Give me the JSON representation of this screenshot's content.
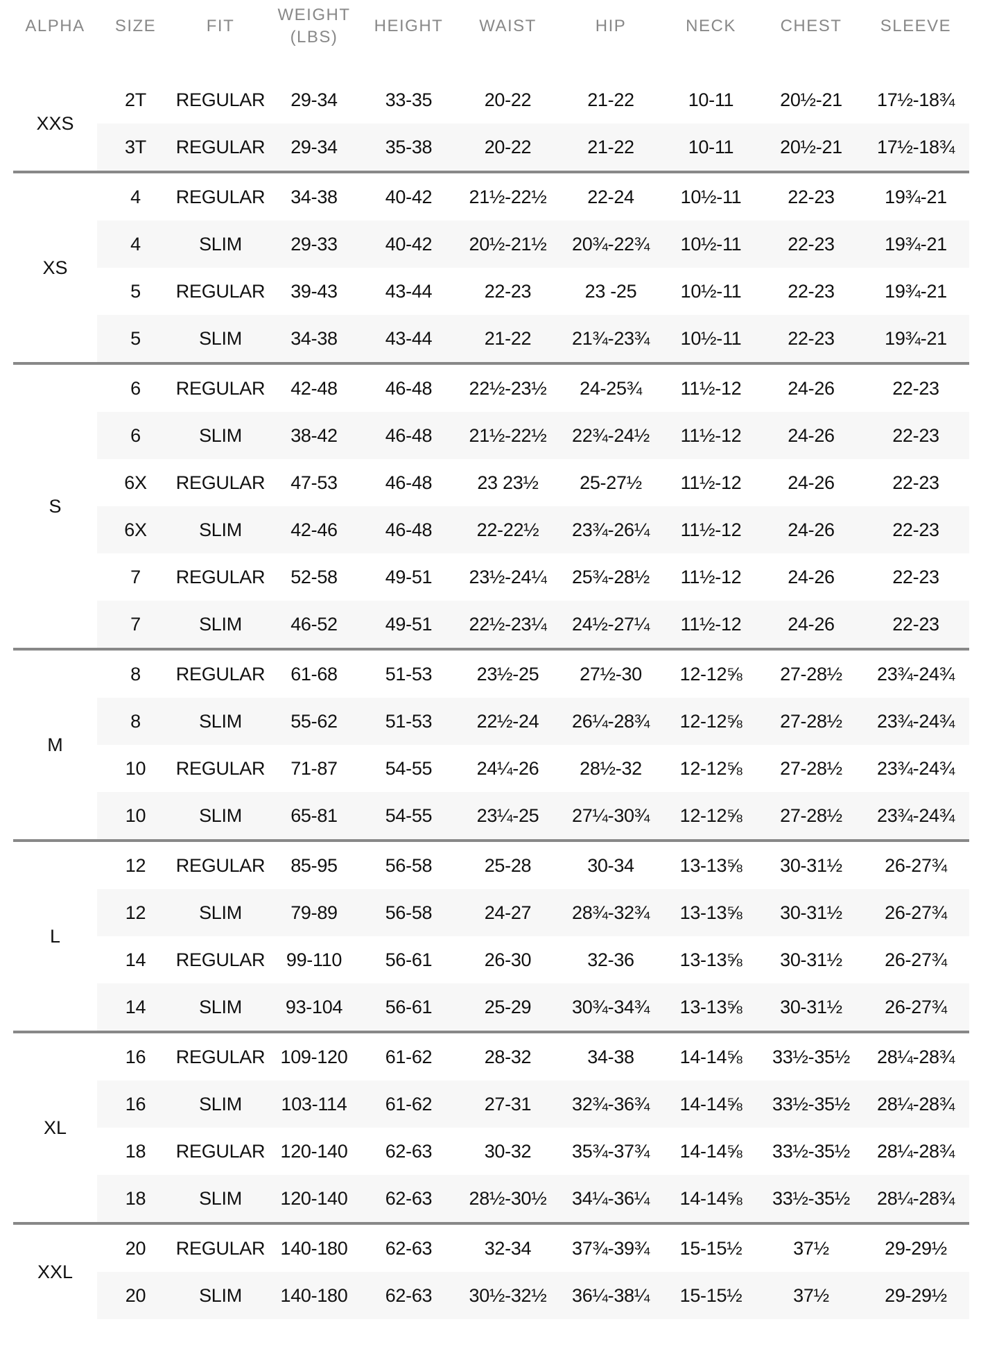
{
  "headers": [
    "ALPHA",
    "SIZE",
    "FIT",
    "WEIGHT\n(LBS)",
    "HEIGHT",
    "WAIST",
    "HIP",
    "NECK",
    "CHEST",
    "SLEEVE"
  ],
  "colors": {
    "header_text": "#888888",
    "separator": "#888888",
    "stripe": "#f7f7f7",
    "text": "#111111"
  },
  "groups": [
    {
      "alpha": "XXS",
      "rows": [
        [
          "2T",
          "REGULAR",
          "29-34",
          "33-35",
          "20-22",
          "21-22",
          "10-11",
          "20½-21",
          "17½-18¾"
        ],
        [
          "3T",
          "REGULAR",
          "29-34",
          "35-38",
          "20-22",
          "21-22",
          "10-11",
          "20½-21",
          "17½-18¾"
        ]
      ]
    },
    {
      "alpha": "XS",
      "rows": [
        [
          "4",
          "REGULAR",
          "34-38",
          "40-42",
          "21½-22½",
          "22-24",
          "10½-11",
          "22-23",
          "19¾-21"
        ],
        [
          "4",
          "SLIM",
          "29-33",
          "40-42",
          "20½-21½",
          "20¾-22¾",
          "10½-11",
          "22-23",
          "19¾-21"
        ],
        [
          "5",
          "REGULAR",
          "39-43",
          "43-44",
          "22-23",
          "23 -25",
          "10½-11",
          "22-23",
          "19¾-21"
        ],
        [
          "5",
          "SLIM",
          "34-38",
          "43-44",
          "21-22",
          "21¾-23¾",
          "10½-11",
          "22-23",
          "19¾-21"
        ]
      ]
    },
    {
      "alpha": "S",
      "rows": [
        [
          "6",
          "REGULAR",
          "42-48",
          "46-48",
          "22½-23½",
          "24-25¾",
          "11½-12",
          "24-26",
          "22-23"
        ],
        [
          "6",
          "SLIM",
          "38-42",
          "46-48",
          "21½-22½",
          "22¾-24½",
          "11½-12",
          "24-26",
          "22-23"
        ],
        [
          "6X",
          "REGULAR",
          "47-53",
          "46-48",
          "23 23½",
          "25-27½",
          "11½-12",
          "24-26",
          "22-23"
        ],
        [
          "6X",
          "SLIM",
          "42-46",
          "46-48",
          "22-22½",
          "23¾-26¼",
          "11½-12",
          "24-26",
          "22-23"
        ],
        [
          "7",
          "REGULAR",
          "52-58",
          "49-51",
          "23½-24¼",
          "25¾-28½",
          "11½-12",
          "24-26",
          "22-23"
        ],
        [
          "7",
          "SLIM",
          "46-52",
          "49-51",
          "22½-23¼",
          "24½-27¼",
          "11½-12",
          "24-26",
          "22-23"
        ]
      ]
    },
    {
      "alpha": "M",
      "rows": [
        [
          "8",
          "REGULAR",
          "61-68",
          "51-53",
          "23½-25",
          "27½-30",
          "12-12⅝",
          "27-28½",
          "23¾-24¾"
        ],
        [
          "8",
          "SLIM",
          "55-62",
          "51-53",
          "22½-24",
          "26¼-28¾",
          "12-12⅝",
          "27-28½",
          "23¾-24¾"
        ],
        [
          "10",
          "REGULAR",
          "71-87",
          "54-55",
          "24¼-26",
          "28½-32",
          "12-12⅝",
          "27-28½",
          "23¾-24¾"
        ],
        [
          "10",
          "SLIM",
          "65-81",
          "54-55",
          "23¼-25",
          "27¼-30¾",
          "12-12⅝",
          "27-28½",
          "23¾-24¾"
        ]
      ]
    },
    {
      "alpha": "L",
      "rows": [
        [
          "12",
          "REGULAR",
          "85-95",
          "56-58",
          "25-28",
          "30-34",
          "13-13⅝",
          "30-31½",
          "26-27¾"
        ],
        [
          "12",
          "SLIM",
          "79-89",
          "56-58",
          "24-27",
          "28¾-32¾",
          "13-13⅝",
          "30-31½",
          "26-27¾"
        ],
        [
          "14",
          "REGULAR",
          "99-110",
          "56-61",
          "26-30",
          "32-36",
          "13-13⅝",
          "30-31½",
          "26-27¾"
        ],
        [
          "14",
          "SLIM",
          "93-104",
          "56-61",
          "25-29",
          "30¾-34¾",
          "13-13⅝",
          "30-31½",
          "26-27¾"
        ]
      ]
    },
    {
      "alpha": "XL",
      "rows": [
        [
          "16",
          "REGULAR",
          "109-120",
          "61-62",
          "28-32",
          "34-38",
          "14-14⅝",
          "33½-35½",
          "28¼-28¾"
        ],
        [
          "16",
          "SLIM",
          "103-114",
          "61-62",
          "27-31",
          "32¾-36¾",
          "14-14⅝",
          "33½-35½",
          "28¼-28¾"
        ],
        [
          "18",
          "REGULAR",
          "120-140",
          "62-63",
          "30-32",
          "35¾-37¾",
          "14-14⅝",
          "33½-35½",
          "28¼-28¾"
        ],
        [
          "18",
          "SLIM",
          "120-140",
          "62-63",
          "28½-30½",
          "34¼-36¼",
          "14-14⅝",
          "33½-35½",
          "28¼-28¾"
        ]
      ]
    },
    {
      "alpha": "XXL",
      "rows": [
        [
          "20",
          "REGULAR",
          "140-180",
          "62-63",
          "32-34",
          "37¾-39¾",
          "15-15½",
          "37½",
          "29-29½"
        ],
        [
          "20",
          "SLIM",
          "140-180",
          "62-63",
          "30½-32½",
          "36¼-38¼",
          "15-15½",
          "37½",
          "29-29½"
        ]
      ]
    }
  ]
}
